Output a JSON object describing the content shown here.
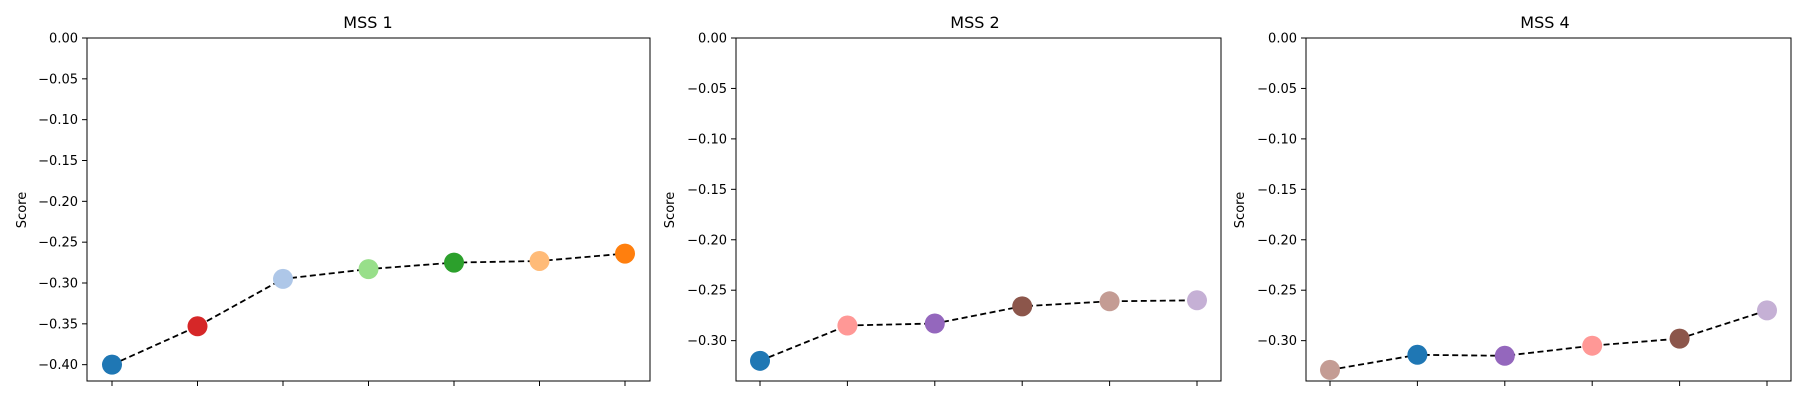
{
  "chart_data": [
    {
      "type": "line",
      "title": "MSS 1",
      "ylabel": "Score",
      "xlabel": "",
      "ylim": [
        -0.42,
        0.0
      ],
      "yticks": [
        "0.00",
        "−0.05",
        "−0.10",
        "−0.15",
        "−0.20",
        "−0.25",
        "−0.30",
        "−0.35",
        "−0.40"
      ],
      "ytick_values": [
        0.0,
        -0.05,
        -0.1,
        -0.15,
        -0.2,
        -0.25,
        -0.3,
        -0.35,
        -0.4
      ],
      "x": [
        0,
        1,
        2,
        3,
        4,
        5,
        6
      ],
      "values": [
        -0.4,
        -0.353,
        -0.295,
        -0.283,
        -0.275,
        -0.273,
        -0.264
      ],
      "point_colors": [
        "#1f77b4",
        "#d62728",
        "#aec7e8",
        "#98df8a",
        "#2ca02c",
        "#ffbb78",
        "#ff7f0e"
      ],
      "line_style": "dashed",
      "line_color": "#000000",
      "grid": false
    },
    {
      "type": "line",
      "title": "MSS 2",
      "ylabel": "Score",
      "xlabel": "",
      "ylim": [
        -0.34,
        0.0
      ],
      "yticks": [
        "0.00",
        "−0.05",
        "−0.10",
        "−0.15",
        "−0.20",
        "−0.25",
        "−0.30"
      ],
      "ytick_values": [
        0.0,
        -0.05,
        -0.1,
        -0.15,
        -0.2,
        -0.25,
        -0.3
      ],
      "x": [
        0,
        1,
        2,
        3,
        4,
        5
      ],
      "values": [
        -0.32,
        -0.285,
        -0.283,
        -0.266,
        -0.261,
        -0.26
      ],
      "point_colors": [
        "#1f77b4",
        "#ff9896",
        "#9467bd",
        "#8c564b",
        "#c49c94",
        "#c5b0d5"
      ],
      "line_style": "dashed",
      "line_color": "#000000",
      "grid": false
    },
    {
      "type": "line",
      "title": "MSS 4",
      "ylabel": "Score",
      "xlabel": "",
      "ylim": [
        -0.34,
        0.0
      ],
      "yticks": [
        "0.00",
        "−0.05",
        "−0.10",
        "−0.15",
        "−0.20",
        "−0.25",
        "−0.30"
      ],
      "ytick_values": [
        0.0,
        -0.05,
        -0.1,
        -0.15,
        -0.2,
        -0.25,
        -0.3
      ],
      "x": [
        0,
        1,
        2,
        3,
        4,
        5
      ],
      "values": [
        -0.329,
        -0.314,
        -0.315,
        -0.305,
        -0.298,
        -0.27
      ],
      "point_colors": [
        "#c49c94",
        "#1f77b4",
        "#9467bd",
        "#ff9896",
        "#8c564b",
        "#c5b0d5"
      ],
      "line_style": "dashed",
      "line_color": "#000000",
      "grid": false
    }
  ]
}
